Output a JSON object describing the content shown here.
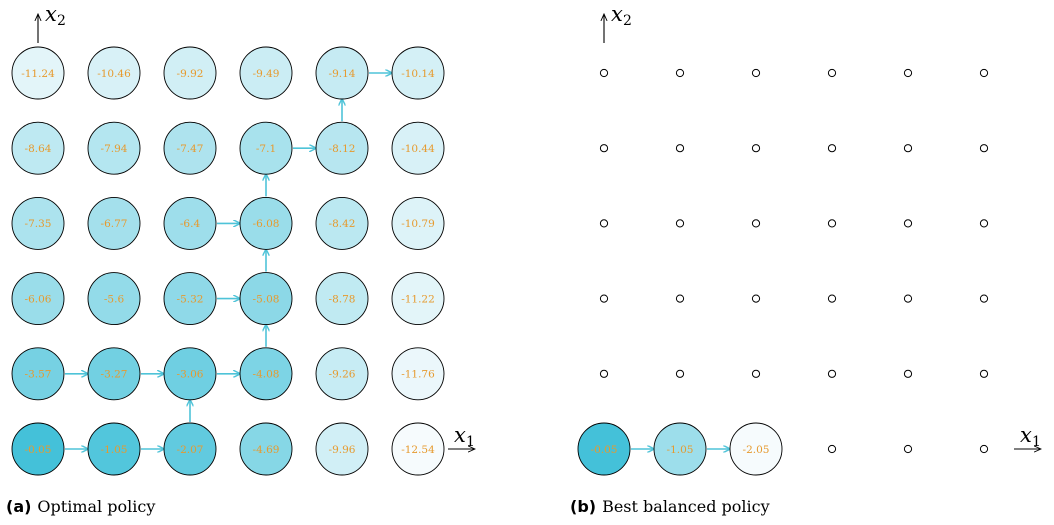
{
  "colors": {
    "value_text": "#e69a2e",
    "arrow": "#4ec3d8",
    "node_fill_min": "#f6fbfd",
    "node_fill_max": "#44c1d9",
    "node_stroke": "#000000"
  },
  "panels": [
    {
      "id": "a",
      "caption_tag": "(a)",
      "caption_text": "Optimal policy",
      "x_axis_var": "x",
      "x_axis_sub": "1",
      "y_axis_var": "x",
      "y_axis_sub": "2",
      "grid": {
        "cols": 6,
        "rows": 6,
        "values": [
          [
            "-11.24",
            "-10.46",
            "-9.92",
            "-9.49",
            "-9.14",
            "-10.14"
          ],
          [
            "-8.64",
            "-7.94",
            "-7.47",
            "-7.1",
            "-8.12",
            "-10.44"
          ],
          [
            "-7.35",
            "-6.77",
            "-6.4",
            "-6.08",
            "-8.42",
            "-10.79"
          ],
          [
            "-6.06",
            "-5.6",
            "-5.32",
            "-5.08",
            "-8.78",
            "-11.22"
          ],
          [
            "-3.57",
            "-3.27",
            "-3.06",
            "-4.08",
            "-9.26",
            "-11.76"
          ],
          [
            "-0.05",
            "-1.05",
            "-2.07",
            "-4.69",
            "-9.96",
            "-12.54"
          ]
        ]
      },
      "arrows": [
        {
          "from": [
            5,
            0
          ],
          "to": [
            5,
            1
          ]
        },
        {
          "from": [
            5,
            1
          ],
          "to": [
            5,
            2
          ]
        },
        {
          "from": [
            5,
            2
          ],
          "to": [
            4,
            2
          ]
        },
        {
          "from": [
            4,
            0
          ],
          "to": [
            4,
            1
          ]
        },
        {
          "from": [
            4,
            1
          ],
          "to": [
            4,
            2
          ]
        },
        {
          "from": [
            4,
            2
          ],
          "to": [
            4,
            3
          ]
        },
        {
          "from": [
            4,
            3
          ],
          "to": [
            3,
            3
          ]
        },
        {
          "from": [
            3,
            2
          ],
          "to": [
            3,
            3
          ]
        },
        {
          "from": [
            3,
            3
          ],
          "to": [
            2,
            3
          ]
        },
        {
          "from": [
            2,
            2
          ],
          "to": [
            2,
            3
          ]
        },
        {
          "from": [
            2,
            3
          ],
          "to": [
            1,
            3
          ]
        },
        {
          "from": [
            1,
            3
          ],
          "to": [
            1,
            4
          ]
        },
        {
          "from": [
            1,
            4
          ],
          "to": [
            0,
            4
          ]
        },
        {
          "from": [
            0,
            4
          ],
          "to": [
            0,
            5
          ]
        }
      ]
    },
    {
      "id": "b",
      "caption_tag": "(b)",
      "caption_text": "Best balanced policy",
      "x_axis_var": "x",
      "x_axis_sub": "1",
      "y_axis_var": "x",
      "y_axis_sub": "2",
      "grid": {
        "cols": 6,
        "rows": 6,
        "values": [
          [
            null,
            null,
            null,
            null,
            null,
            null
          ],
          [
            null,
            null,
            null,
            null,
            null,
            null
          ],
          [
            null,
            null,
            null,
            null,
            null,
            null
          ],
          [
            null,
            null,
            null,
            null,
            null,
            null
          ],
          [
            null,
            null,
            null,
            null,
            null,
            null
          ],
          [
            "-0.05",
            "-1.05",
            "-2.05",
            null,
            null,
            null
          ]
        ]
      },
      "arrows": [
        {
          "from": [
            5,
            0
          ],
          "to": [
            5,
            1
          ]
        },
        {
          "from": [
            5,
            1
          ],
          "to": [
            5,
            2
          ]
        }
      ]
    }
  ]
}
